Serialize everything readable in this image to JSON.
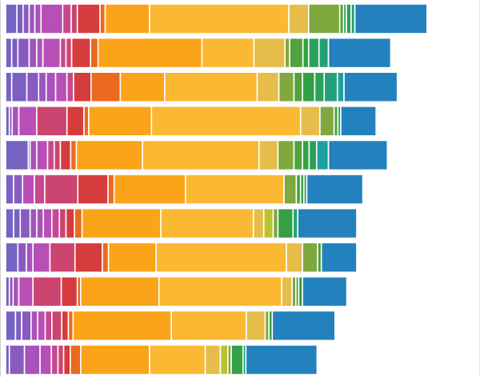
{
  "chart_data": {
    "type": "bar",
    "orientation": "horizontal",
    "stacked": true,
    "title": "",
    "xlabel": "",
    "ylabel": "",
    "xlim": [
      0,
      100
    ],
    "grid": false,
    "legend": "none",
    "rows": [
      {
        "segments": [
          {
            "value": 2.4,
            "color": "#7663c2"
          },
          {
            "value": 1.3,
            "color": "#7b5fc1"
          },
          {
            "value": 1.3,
            "color": "#8a5bbf"
          },
          {
            "value": 1.2,
            "color": "#9a56bd"
          },
          {
            "value": 1.3,
            "color": "#a852bb"
          },
          {
            "value": 4.6,
            "color": "#b84fb6"
          },
          {
            "value": 1.8,
            "color": "#c6488f"
          },
          {
            "value": 1.3,
            "color": "#cc4470"
          },
          {
            "value": 4.8,
            "color": "#d63b3e"
          },
          {
            "value": 1.1,
            "color": "#ea6a1f"
          },
          {
            "value": 9.4,
            "color": "#fba419"
          },
          {
            "value": 29.5,
            "color": "#fbb832"
          },
          {
            "value": 4.2,
            "color": "#e6bd4b"
          },
          {
            "value": 6.6,
            "color": "#7fa83f"
          },
          {
            "value": 0.8,
            "color": "#4ea33c"
          },
          {
            "value": 0.6,
            "color": "#34a043"
          },
          {
            "value": 1.0,
            "color": "#2aa05a"
          },
          {
            "value": 0.8,
            "color": "#23a078"
          },
          {
            "value": 15.3,
            "color": "#2382be"
          }
        ]
      },
      {
        "segments": [
          {
            "value": 1.3,
            "color": "#7663c2"
          },
          {
            "value": 1.3,
            "color": "#7b5fc1"
          },
          {
            "value": 2.4,
            "color": "#8a5bbf"
          },
          {
            "value": 1.6,
            "color": "#9a56bd"
          },
          {
            "value": 1.3,
            "color": "#a852bb"
          },
          {
            "value": 3.7,
            "color": "#b84fb6"
          },
          {
            "value": 1.2,
            "color": "#c6488f"
          },
          {
            "value": 1.2,
            "color": "#cc4470"
          },
          {
            "value": 4.0,
            "color": "#d63b3e"
          },
          {
            "value": 1.6,
            "color": "#ea6a1f"
          },
          {
            "value": 22.0,
            "color": "#fba419"
          },
          {
            "value": 11.0,
            "color": "#fbb832"
          },
          {
            "value": 6.6,
            "color": "#e6bd4b"
          },
          {
            "value": 1.0,
            "color": "#7fa83f"
          },
          {
            "value": 2.8,
            "color": "#4ea33c"
          },
          {
            "value": 1.2,
            "color": "#34a043"
          },
          {
            "value": 2.2,
            "color": "#2aa05a"
          },
          {
            "value": 2.0,
            "color": "#23a078"
          },
          {
            "value": 13.2,
            "color": "#2382be"
          }
        ]
      },
      {
        "segments": [
          {
            "value": 1.3,
            "color": "#7663c2"
          },
          {
            "value": 3.2,
            "color": "#7b5fc1"
          },
          {
            "value": 2.5,
            "color": "#8a5bbf"
          },
          {
            "value": 1.6,
            "color": "#9a56bd"
          },
          {
            "value": 2.0,
            "color": "#a852bb"
          },
          {
            "value": 2.4,
            "color": "#b84fb6"
          },
          {
            "value": 1.4,
            "color": "#c6488f"
          },
          {
            "value": 3.7,
            "color": "#d63b3e"
          },
          {
            "value": 6.2,
            "color": "#ea6a1f"
          },
          {
            "value": 9.4,
            "color": "#fba419"
          },
          {
            "value": 19.6,
            "color": "#fbb832"
          },
          {
            "value": 4.6,
            "color": "#e6bd4b"
          },
          {
            "value": 3.2,
            "color": "#7fa83f"
          },
          {
            "value": 1.8,
            "color": "#4ea33c"
          },
          {
            "value": 2.6,
            "color": "#34a043"
          },
          {
            "value": 2.0,
            "color": "#2aa05a"
          },
          {
            "value": 2.8,
            "color": "#23a078"
          },
          {
            "value": 1.4,
            "color": "#1fa0a0"
          },
          {
            "value": 11.3,
            "color": "#2382be"
          }
        ]
      },
      {
        "segments": [
          {
            "value": 0.8,
            "color": "#7663c2"
          },
          {
            "value": 0.6,
            "color": "#8a5bbf"
          },
          {
            "value": 1.4,
            "color": "#a852bb"
          },
          {
            "value": 3.8,
            "color": "#b84fb6"
          },
          {
            "value": 6.4,
            "color": "#cc4470"
          },
          {
            "value": 3.6,
            "color": "#d63b3e"
          },
          {
            "value": 1.0,
            "color": "#ea6a1f"
          },
          {
            "value": 13.3,
            "color": "#fba419"
          },
          {
            "value": 31.6,
            "color": "#fbb832"
          },
          {
            "value": 4.1,
            "color": "#e6bd4b"
          },
          {
            "value": 3.0,
            "color": "#7fa83f"
          },
          {
            "value": 0.8,
            "color": "#4ea33c"
          },
          {
            "value": 0.6,
            "color": "#23a078"
          },
          {
            "value": 7.5,
            "color": "#2382be"
          }
        ]
      },
      {
        "segments": [
          {
            "value": 4.8,
            "color": "#7663c2"
          },
          {
            "value": 0.4,
            "color": "#8a5bbf"
          },
          {
            "value": 1.4,
            "color": "#a852bb"
          },
          {
            "value": 2.3,
            "color": "#b84fb6"
          },
          {
            "value": 1.4,
            "color": "#c6488f"
          },
          {
            "value": 1.3,
            "color": "#cc4470"
          },
          {
            "value": 2.2,
            "color": "#d63b3e"
          },
          {
            "value": 1.2,
            "color": "#ea6a1f"
          },
          {
            "value": 14.0,
            "color": "#fba419"
          },
          {
            "value": 24.7,
            "color": "#fbb832"
          },
          {
            "value": 4.0,
            "color": "#e6bd4b"
          },
          {
            "value": 3.4,
            "color": "#7fa83f"
          },
          {
            "value": 1.8,
            "color": "#4ea33c"
          },
          {
            "value": 1.4,
            "color": "#34a043"
          },
          {
            "value": 1.6,
            "color": "#2aa05a"
          },
          {
            "value": 2.5,
            "color": "#1fa0a0"
          },
          {
            "value": 12.5,
            "color": "#2382be"
          }
        ]
      },
      {
        "segments": [
          {
            "value": 1.7,
            "color": "#7663c2"
          },
          {
            "value": 1.9,
            "color": "#8a5bbf"
          },
          {
            "value": 2.5,
            "color": "#b84fb6"
          },
          {
            "value": 2.2,
            "color": "#c6488f"
          },
          {
            "value": 7.0,
            "color": "#cc4470"
          },
          {
            "value": 6.4,
            "color": "#d63b3e"
          },
          {
            "value": 1.3,
            "color": "#ea6a1f"
          },
          {
            "value": 15.1,
            "color": "#fba419"
          },
          {
            "value": 20.9,
            "color": "#fbb832"
          },
          {
            "value": 2.6,
            "color": "#7fa83f"
          },
          {
            "value": 0.9,
            "color": "#4ea33c"
          },
          {
            "value": 0.7,
            "color": "#34a043"
          },
          {
            "value": 0.6,
            "color": "#2aa05a"
          },
          {
            "value": 11.9,
            "color": "#2382be"
          }
        ]
      },
      {
        "segments": [
          {
            "value": 1.7,
            "color": "#7663c2"
          },
          {
            "value": 1.4,
            "color": "#7b5fc1"
          },
          {
            "value": 2.1,
            "color": "#8a5bbf"
          },
          {
            "value": 1.4,
            "color": "#9a56bd"
          },
          {
            "value": 1.4,
            "color": "#a852bb"
          },
          {
            "value": 1.8,
            "color": "#b84fb6"
          },
          {
            "value": 1.6,
            "color": "#c6488f"
          },
          {
            "value": 1.4,
            "color": "#cc4470"
          },
          {
            "value": 1.8,
            "color": "#d63b3e"
          },
          {
            "value": 1.6,
            "color": "#ea6a1f"
          },
          {
            "value": 16.7,
            "color": "#fba419"
          },
          {
            "value": 19.6,
            "color": "#fbb832"
          },
          {
            "value": 2.2,
            "color": "#e6bd4b"
          },
          {
            "value": 2.0,
            "color": "#b7c42f"
          },
          {
            "value": 1.0,
            "color": "#7fa83f"
          },
          {
            "value": 3.2,
            "color": "#34a043"
          },
          {
            "value": 1.0,
            "color": "#23a078"
          },
          {
            "value": 12.5,
            "color": "#2382be"
          }
        ]
      },
      {
        "segments": [
          {
            "value": 2.6,
            "color": "#7663c2"
          },
          {
            "value": 1.8,
            "color": "#8a5bbf"
          },
          {
            "value": 1.4,
            "color": "#a852bb"
          },
          {
            "value": 3.6,
            "color": "#b84fb6"
          },
          {
            "value": 5.3,
            "color": "#cc4470"
          },
          {
            "value": 5.8,
            "color": "#d63b3e"
          },
          {
            "value": 1.3,
            "color": "#ea6a1f"
          },
          {
            "value": 10.1,
            "color": "#fba419"
          },
          {
            "value": 27.6,
            "color": "#fbb832"
          },
          {
            "value": 3.4,
            "color": "#e6bd4b"
          },
          {
            "value": 3.2,
            "color": "#7fa83f"
          },
          {
            "value": 0.8,
            "color": "#4ea33c"
          },
          {
            "value": 7.5,
            "color": "#2382be"
          }
        ]
      },
      {
        "segments": [
          {
            "value": 0.8,
            "color": "#7663c2"
          },
          {
            "value": 0.8,
            "color": "#8a5bbf"
          },
          {
            "value": 1.2,
            "color": "#a852bb"
          },
          {
            "value": 3.0,
            "color": "#b84fb6"
          },
          {
            "value": 6.0,
            "color": "#cc4470"
          },
          {
            "value": 3.4,
            "color": "#d63b3e"
          },
          {
            "value": 0.7,
            "color": "#ea6a1f"
          },
          {
            "value": 16.6,
            "color": "#fba419"
          },
          {
            "value": 26.0,
            "color": "#fbb832"
          },
          {
            "value": 2.2,
            "color": "#e6bd4b"
          },
          {
            "value": 0.8,
            "color": "#7fa83f"
          },
          {
            "value": 0.6,
            "color": "#4ea33c"
          },
          {
            "value": 0.8,
            "color": "#34a043"
          },
          {
            "value": 9.4,
            "color": "#2382be"
          }
        ]
      },
      {
        "segments": [
          {
            "value": 2.1,
            "color": "#7663c2"
          },
          {
            "value": 1.3,
            "color": "#7b5fc1"
          },
          {
            "value": 2.0,
            "color": "#8a5bbf"
          },
          {
            "value": 1.4,
            "color": "#a852bb"
          },
          {
            "value": 1.6,
            "color": "#b84fb6"
          },
          {
            "value": 1.4,
            "color": "#c6488f"
          },
          {
            "value": 2.1,
            "color": "#cc4470"
          },
          {
            "value": 1.4,
            "color": "#d63b3e"
          },
          {
            "value": 1.0,
            "color": "#ea6a1f"
          },
          {
            "value": 20.8,
            "color": "#fba419"
          },
          {
            "value": 15.9,
            "color": "#fbb832"
          },
          {
            "value": 4.0,
            "color": "#e6bd4b"
          },
          {
            "value": 0.8,
            "color": "#7fa83f"
          },
          {
            "value": 0.7,
            "color": "#34a043"
          },
          {
            "value": 13.3,
            "color": "#2382be"
          }
        ]
      },
      {
        "segments": [
          {
            "value": 0.8,
            "color": "#7663c2"
          },
          {
            "value": 3.2,
            "color": "#8a5bbf"
          },
          {
            "value": 3.3,
            "color": "#a852bb"
          },
          {
            "value": 2.4,
            "color": "#b84fb6"
          },
          {
            "value": 1.4,
            "color": "#c6488f"
          },
          {
            "value": 1.2,
            "color": "#cc4470"
          },
          {
            "value": 1.4,
            "color": "#d63b3e"
          },
          {
            "value": 2.2,
            "color": "#ea6a1f"
          },
          {
            "value": 14.6,
            "color": "#fba419"
          },
          {
            "value": 11.8,
            "color": "#fbb832"
          },
          {
            "value": 3.2,
            "color": "#e6bd4b"
          },
          {
            "value": 1.6,
            "color": "#b7c42f"
          },
          {
            "value": 0.7,
            "color": "#7fa83f"
          },
          {
            "value": 2.5,
            "color": "#34a043"
          },
          {
            "value": 0.6,
            "color": "#23a078"
          },
          {
            "value": 15.1,
            "color": "#2382be"
          }
        ]
      }
    ]
  }
}
